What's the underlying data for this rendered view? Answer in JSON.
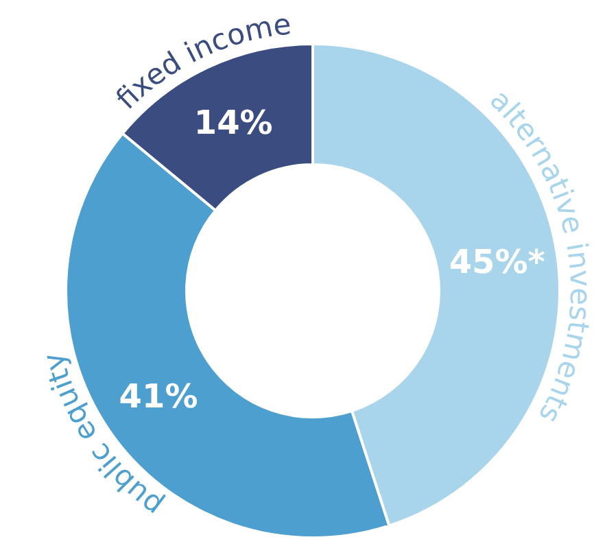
{
  "chart_data": {
    "type": "donut",
    "categories": [
      "alternative investments",
      "public equity",
      "fixed income"
    ],
    "values": [
      45,
      41,
      14
    ],
    "value_labels": [
      "45%*",
      "41%",
      "14%"
    ],
    "colors": [
      "#a8d5ec",
      "#4d9fcf",
      "#3b4c80"
    ]
  }
}
